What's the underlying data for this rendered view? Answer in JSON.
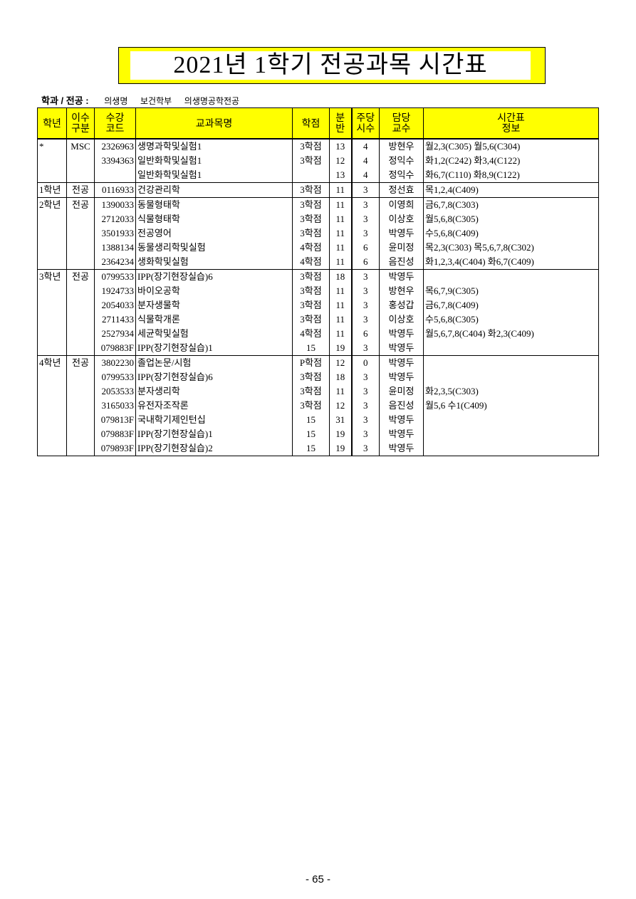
{
  "title": "2021년 1학기 전공과목 시간표",
  "department": {
    "label": "학과 / 전공 :",
    "college": "의생명",
    "division": "보건학부",
    "major": "의생명공학전공"
  },
  "headers": [
    "학년",
    "이수\n구분",
    "수강\n코드",
    "교과목명",
    "학점",
    "분\n반",
    "주당\n시수",
    "담당\n교수",
    "시간표\n정보"
  ],
  "groups": [
    {
      "year": "*",
      "type": "MSC",
      "rows": [
        {
          "code": "2326963",
          "name": "생명과학및실험1",
          "credit": "3학점",
          "section": "13",
          "hours": "4",
          "professor": "방현우",
          "schedule": "월2,3(C305) 월5,6(C304)"
        },
        {
          "code": "3394363",
          "name": "일반화학및실험1",
          "credit": "3학점",
          "section": "12",
          "hours": "4",
          "professor": "정익수",
          "schedule": "화1,2(C242) 화3,4(C122)"
        },
        {
          "code": "",
          "name": "일반화학및실험1",
          "credit": "",
          "section": "13",
          "hours": "4",
          "professor": "정익수",
          "schedule": "화6,7(C110) 화8,9(C122)"
        }
      ]
    },
    {
      "year": "1학년",
      "type": "전공",
      "rows": [
        {
          "code": "0116933",
          "name": "건강관리학",
          "credit": "3학점",
          "section": "11",
          "hours": "3",
          "professor": "정선효",
          "schedule": "목1,2,4(C409)"
        }
      ]
    },
    {
      "year": "2학년",
      "type": "전공",
      "rows": [
        {
          "code": "1390033",
          "name": "동물형태학",
          "credit": "3학점",
          "section": "11",
          "hours": "3",
          "professor": "이영희",
          "schedule": "금6,7,8(C303)"
        },
        {
          "code": "2712033",
          "name": "식물형태학",
          "credit": "3학점",
          "section": "11",
          "hours": "3",
          "professor": "이상호",
          "schedule": "월5,6,8(C305)"
        },
        {
          "code": "3501933",
          "name": "전공영어",
          "credit": "3학점",
          "section": "11",
          "hours": "3",
          "professor": "박영두",
          "schedule": "수5,6,8(C409)"
        },
        {
          "code": "1388134",
          "name": "동물생리학및실험",
          "credit": "4학점",
          "section": "11",
          "hours": "6",
          "professor": "윤미정",
          "schedule": "목2,3(C303) 목5,6,7,8(C302)"
        },
        {
          "code": "2364234",
          "name": "생화학및실험",
          "credit": "4학점",
          "section": "11",
          "hours": "6",
          "professor": "음진성",
          "schedule": "화1,2,3,4(C404) 화6,7(C409)"
        }
      ]
    },
    {
      "year": "3학년",
      "type": "전공",
      "rows": [
        {
          "code": "0799533",
          "name": "IPP(장기현장실습)6",
          "credit": "3학점",
          "section": "18",
          "hours": "3",
          "professor": "박영두",
          "schedule": ""
        },
        {
          "code": "1924733",
          "name": "바이오공학",
          "credit": "3학점",
          "section": "11",
          "hours": "3",
          "professor": "방현우",
          "schedule": "목6,7,9(C305)"
        },
        {
          "code": "2054033",
          "name": "분자생물학",
          "credit": "3학점",
          "section": "11",
          "hours": "3",
          "professor": "홍성갑",
          "schedule": "금6,7,8(C409)"
        },
        {
          "code": "2711433",
          "name": "식물학개론",
          "credit": "3학점",
          "section": "11",
          "hours": "3",
          "professor": "이상호",
          "schedule": "수5,6,8(C305)"
        },
        {
          "code": "2527934",
          "name": "세균학및실험",
          "credit": "4학점",
          "section": "11",
          "hours": "6",
          "professor": "박영두",
          "schedule": "월5,6,7,8(C404) 화2,3(C409)"
        },
        {
          "code": "079883F",
          "name": "IPP(장기현장실습)1",
          "credit": "15",
          "section": "19",
          "hours": "3",
          "professor": "박영두",
          "schedule": ""
        }
      ]
    },
    {
      "year": "4학년",
      "type": "전공",
      "rows": [
        {
          "code": "3802230",
          "name": "졸업논문/시험",
          "credit": "P학점",
          "section": "12",
          "hours": "0",
          "professor": "박영두",
          "schedule": ""
        },
        {
          "code": "0799533",
          "name": "IPP(장기현장실습)6",
          "credit": "3학점",
          "section": "18",
          "hours": "3",
          "professor": "박영두",
          "schedule": ""
        },
        {
          "code": "2053533",
          "name": "분자생리학",
          "credit": "3학점",
          "section": "11",
          "hours": "3",
          "professor": "윤미정",
          "schedule": "화2,3,5(C303)"
        },
        {
          "code": "3165033",
          "name": "유전자조작론",
          "credit": "3학점",
          "section": "12",
          "hours": "3",
          "professor": "음진성",
          "schedule": "월5,6 수1(C409)"
        },
        {
          "code": "079813F",
          "name": "국내학기제인턴십",
          "credit": "15",
          "section": "31",
          "hours": "3",
          "professor": "박영두",
          "schedule": ""
        },
        {
          "code": "079883F",
          "name": "IPP(장기현장실습)1",
          "credit": "15",
          "section": "19",
          "hours": "3",
          "professor": "박영두",
          "schedule": ""
        },
        {
          "code": "079893F",
          "name": "IPP(장기현장실습)2",
          "credit": "15",
          "section": "19",
          "hours": "3",
          "professor": "박영두",
          "schedule": ""
        }
      ]
    }
  ],
  "page_number": "- 65 -",
  "colors": {
    "header_bg": "#ffff00",
    "title_bg": "#ffff00"
  }
}
